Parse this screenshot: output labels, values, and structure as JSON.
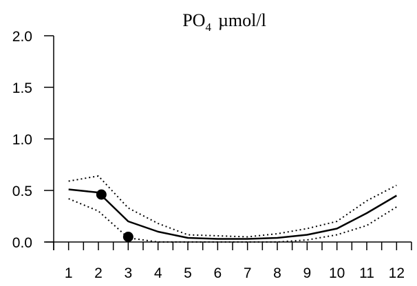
{
  "chart_data": {
    "type": "line",
    "title": {
      "main": "PO",
      "subscript": "4",
      "unit": "µmol/l"
    },
    "xlabel": "",
    "ylabel": "",
    "x": [
      1,
      2,
      3,
      4,
      5,
      6,
      7,
      8,
      9,
      10,
      11,
      12
    ],
    "xlim": [
      0.5,
      12.5
    ],
    "ylim": [
      0,
      2.0
    ],
    "x_ticks": [
      1,
      2,
      3,
      4,
      5,
      6,
      7,
      8,
      9,
      10,
      11,
      12
    ],
    "x_tick_labels": [
      "1",
      "2",
      "3",
      "4",
      "5",
      "6",
      "7",
      "8",
      "9",
      "10",
      "11",
      "12"
    ],
    "y_ticks": [
      0,
      0.5,
      1.0,
      1.5,
      2.0
    ],
    "y_tick_labels": [
      "0.0",
      "0.5",
      "1.0",
      "1.5",
      "2.0"
    ],
    "grid": false,
    "series": [
      {
        "style": "solid",
        "color": "#000000",
        "values": [
          0.51,
          0.48,
          0.2,
          0.1,
          0.04,
          0.03,
          0.03,
          0.04,
          0.07,
          0.13,
          0.28,
          0.45
        ]
      },
      {
        "style": "dotted-upper",
        "color": "#000000",
        "values": [
          0.59,
          0.64,
          0.33,
          0.18,
          0.07,
          0.06,
          0.05,
          0.08,
          0.13,
          0.2,
          0.4,
          0.55
        ]
      },
      {
        "style": "dotted-lower",
        "color": "#000000",
        "values": [
          0.42,
          0.3,
          0.04,
          0.0,
          0.0,
          0.0,
          0.0,
          0.0,
          0.02,
          0.07,
          0.16,
          0.34
        ]
      },
      {
        "style": "points",
        "color": "#000000",
        "points": [
          {
            "x": 2.1,
            "y": 0.46
          },
          {
            "x": 3.0,
            "y": 0.05
          }
        ]
      }
    ]
  }
}
